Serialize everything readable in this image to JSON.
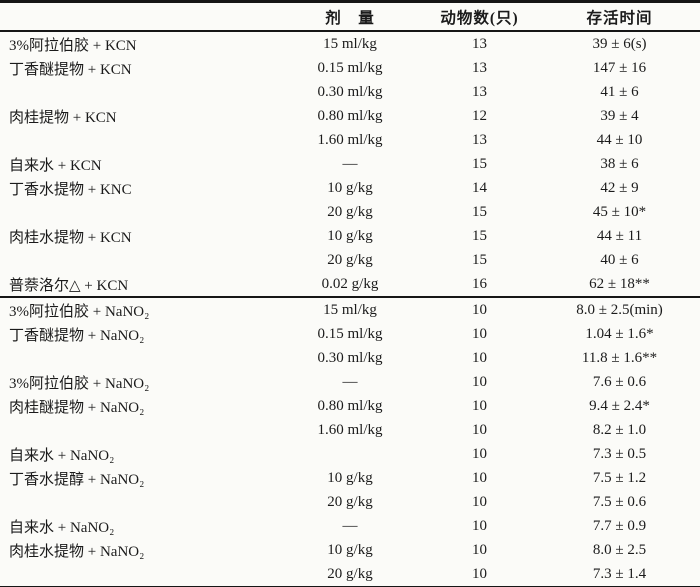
{
  "colors": {
    "ink": "#1b1b1b",
    "paper": "#fbfbf8",
    "rule": "#161616"
  },
  "table": {
    "headers": {
      "group": "",
      "dose": "剂　量",
      "animals": "动物数(只)",
      "survival": "存活时间"
    },
    "section_break_after": 10,
    "rows": [
      {
        "group": "3%阿拉伯胶 + KCN",
        "dose": "15 ml/kg",
        "n": "13",
        "time": "39 ± 6(s)"
      },
      {
        "group": "丁香醚提物 + KCN",
        "dose": "0.15 ml/kg",
        "n": "13",
        "time": "147 ± 16"
      },
      {
        "group": "",
        "dose": "0.30 ml/kg",
        "n": "13",
        "time": "41 ± 6"
      },
      {
        "group": "肉桂提物 + KCN",
        "dose": "0.80 ml/kg",
        "n": "12",
        "time": "39 ± 4"
      },
      {
        "group": "",
        "dose": "1.60 ml/kg",
        "n": "13",
        "time": "44 ± 10"
      },
      {
        "group": "自来水 + KCN",
        "dose": "—",
        "n": "15",
        "time": "38 ± 6"
      },
      {
        "group": "丁香水提物 + KNC",
        "dose": "10 g/kg",
        "n": "14",
        "time": "42 ± 9"
      },
      {
        "group": "",
        "dose": "20 g/kg",
        "n": "15",
        "time": "45 ± 10*"
      },
      {
        "group": "肉桂水提物 + KCN",
        "dose": "10 g/kg",
        "n": "15",
        "time": "44 ± 11"
      },
      {
        "group": "",
        "dose": "20 g/kg",
        "n": "15",
        "time": "40 ± 6"
      },
      {
        "group": "普萘洛尔△ + KCN",
        "dose": "0.02 g/kg",
        "n": "16",
        "time": "62 ± 18**"
      },
      {
        "group": "3%阿拉伯胶 + NaNO₂",
        "dose": "15 ml/kg",
        "n": "10",
        "time": "8.0 ± 2.5(min)"
      },
      {
        "group": "丁香醚提物 + NaNO₂",
        "dose": "0.15 ml/kg",
        "n": "10",
        "time": "1.04 ± 1.6*"
      },
      {
        "group": "",
        "dose": "0.30 ml/kg",
        "n": "10",
        "time": "11.8 ± 1.6**"
      },
      {
        "group": "3%阿拉伯胶 + NaNO₂",
        "dose": "—",
        "n": "10",
        "time": "7.6 ± 0.6"
      },
      {
        "group": "肉桂醚提物 + NaNO₂",
        "dose": "0.80 ml/kg",
        "n": "10",
        "time": "9.4 ± 2.4*"
      },
      {
        "group": "",
        "dose": "1.60 ml/kg",
        "n": "10",
        "time": "8.2 ± 1.0"
      },
      {
        "group": "自来水 + NaNO₂",
        "dose": "",
        "n": "10",
        "time": "7.3 ± 0.5"
      },
      {
        "group": "丁香水提醇 + NaNO₂",
        "dose": "10 g/kg",
        "n": "10",
        "time": "7.5 ± 1.2"
      },
      {
        "group": "",
        "dose": "20 g/kg",
        "n": "10",
        "time": "7.5 ± 0.6"
      },
      {
        "group": "自来水 + NaNO₂",
        "dose": "—",
        "n": "10",
        "time": "7.7 ± 0.9"
      },
      {
        "group": "肉桂水提物 + NaNO₂",
        "dose": "10 g/kg",
        "n": "10",
        "time": "8.0 ± 2.5"
      },
      {
        "group": "",
        "dose": "20 g/kg",
        "n": "10",
        "time": "7.3 ± 1.4"
      }
    ]
  }
}
